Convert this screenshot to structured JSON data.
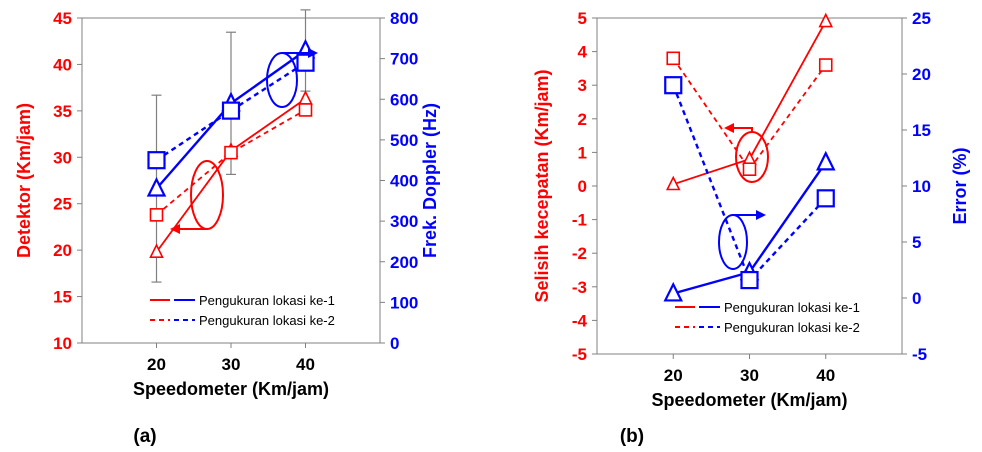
{
  "colors": {
    "red": "#ff0000",
    "blue": "#0000ff",
    "black": "#000000",
    "grid": "#808080"
  },
  "chart_data": [
    {
      "type": "line",
      "panel_label": "(a)",
      "x": [
        20,
        30,
        40
      ],
      "xlabel": "Speedometer (Km/jam)",
      "xlim": [
        10,
        50
      ],
      "xticks": [
        "20",
        "30",
        "40"
      ],
      "ylabel_left": "Detektor (Km/jam)",
      "ylim_left": [
        10,
        45
      ],
      "yticks_left": [
        "10",
        "15",
        "20",
        "25",
        "30",
        "35",
        "40",
        "45"
      ],
      "ylabel_right": "Frek. Doppler (Hz)",
      "ylim_right": [
        0,
        800
      ],
      "yticks_right": [
        "0",
        "100",
        "200",
        "300",
        "400",
        "500",
        "600",
        "700",
        "800"
      ],
      "series": [
        {
          "axis": "left",
          "color": "red",
          "style": "solid",
          "marker": "triangle",
          "values": [
            19.8,
            30.7,
            36.3
          ]
        },
        {
          "axis": "left",
          "color": "red",
          "style": "dashed",
          "marker": "square",
          "values": [
            23.8,
            30.5,
            35.1
          ]
        },
        {
          "axis": "right",
          "color": "blue",
          "style": "solid",
          "marker": "triangle",
          "values": [
            380,
            590,
            720
          ],
          "errors": [
            230,
            175,
            100
          ]
        },
        {
          "axis": "right",
          "color": "blue",
          "style": "dashed",
          "marker": "square",
          "values": [
            450,
            572,
            690
          ]
        }
      ],
      "legend": [
        "Pengukuran lokasi ke-1",
        "Pengukuran lokasi ke-2"
      ],
      "legend_position": "bottom-right",
      "grid": false
    },
    {
      "type": "line",
      "panel_label": "(b)",
      "x": [
        20,
        30,
        40
      ],
      "xlabel": "Speedometer (Km/jam)",
      "xlim": [
        10,
        50
      ],
      "xticks": [
        "20",
        "30",
        "40"
      ],
      "ylabel_left": "Selisih kecepatan (Km/jam)",
      "ylim_left": [
        -5,
        5
      ],
      "yticks_left": [
        "-5",
        "-4",
        "-3",
        "-2",
        "-1",
        "0",
        "1",
        "2",
        "3",
        "4",
        "5"
      ],
      "ylabel_right": "Error (%)",
      "ylim_right": [
        -5,
        25
      ],
      "yticks_right": [
        "-5",
        "0",
        "5",
        "10",
        "15",
        "20",
        "25"
      ],
      "series": [
        {
          "axis": "left",
          "color": "red",
          "style": "solid",
          "marker": "triangle",
          "values": [
            0.05,
            0.8,
            4.9
          ]
        },
        {
          "axis": "left",
          "color": "red",
          "style": "dashed",
          "marker": "square",
          "values": [
            3.8,
            0.5,
            3.6
          ]
        },
        {
          "axis": "right",
          "color": "blue",
          "style": "solid",
          "marker": "triangle",
          "values": [
            0.4,
            2.3,
            12.1
          ]
        },
        {
          "axis": "right",
          "color": "blue",
          "style": "dashed",
          "marker": "square",
          "values": [
            19.0,
            1.6,
            8.9
          ]
        }
      ],
      "legend": [
        "Pengukuran lokasi ke-1",
        "Pengukuran lokasi ke-2"
      ],
      "legend_position": "bottom-right",
      "grid": false
    }
  ]
}
